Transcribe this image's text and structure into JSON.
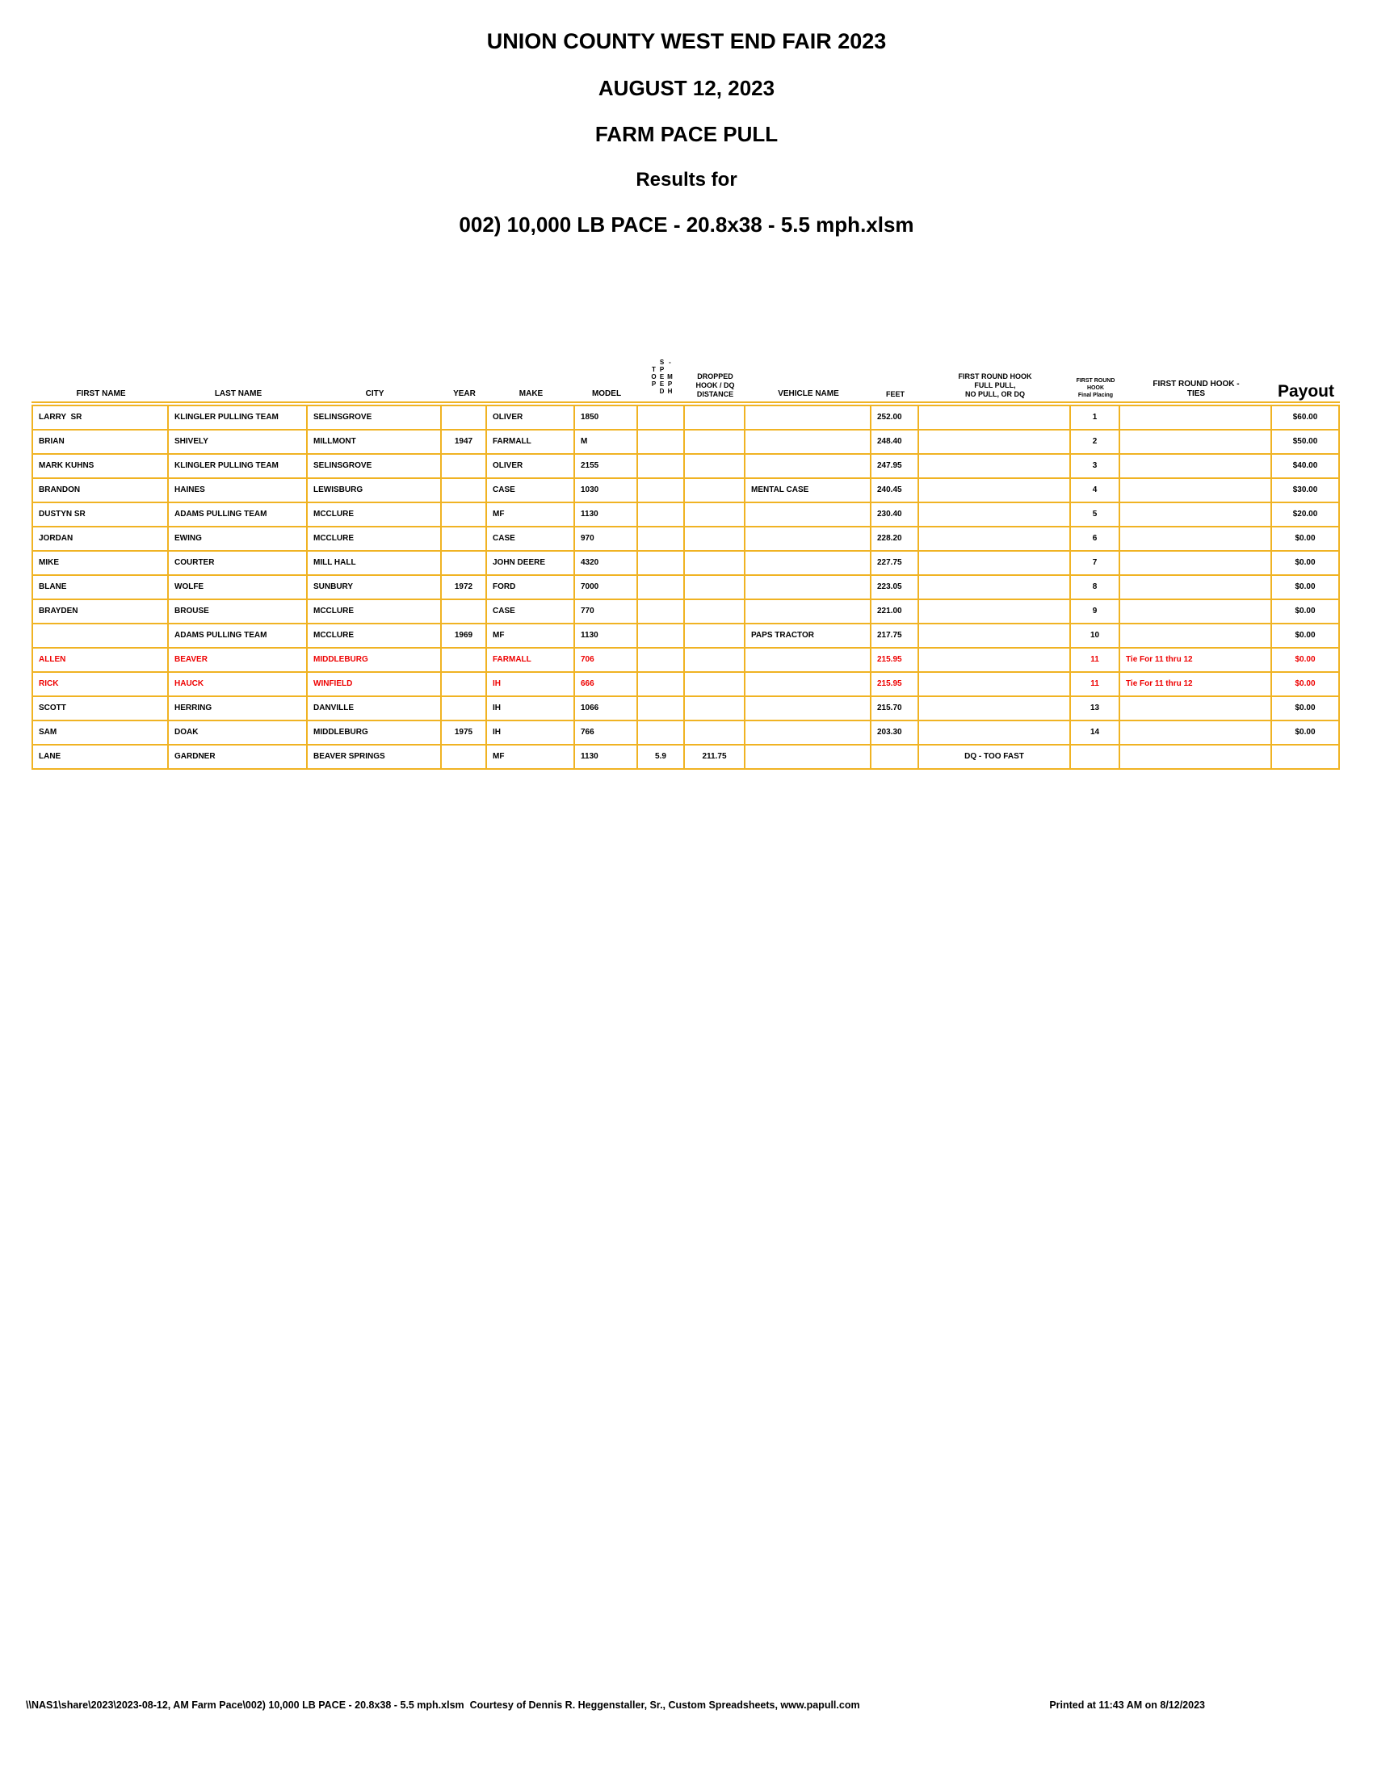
{
  "title": {
    "line1": "UNION COUNTY WEST END FAIR 2023",
    "line2": "AUGUST 12, 2023",
    "line3": "FARM PACE PULL",
    "line4": "Results for",
    "line5": "002) 10,000 LB PACE - 20.8x38 - 5.5 mph.xlsm"
  },
  "colors": {
    "table_border_gold": "#F0B323",
    "tie_row_red": "#EE0000",
    "text_black": "#000000"
  },
  "table": {
    "headers": {
      "first_name": "FIRST NAME",
      "last_name": "LAST NAME",
      "city": "CITY",
      "year": "YEAR",
      "make": "MAKE",
      "model": "MODEL",
      "top_speed": "TOP SPEED - MPH",
      "dropped_l1": "DROPPED",
      "dropped_l2": "HOOK / DQ",
      "dropped_l3": "DISTANCE",
      "vehicle": "VEHICLE NAME",
      "feet": "FEET",
      "full_pull_l1": "FIRST ROUND HOOK",
      "full_pull_l2": "FULL PULL,",
      "full_pull_l3": "NO PULL, OR DQ",
      "placing_l1": "FIRST ROUND",
      "placing_l2": "HOOK",
      "placing_l3": "Final Placing",
      "ties_l1": "FIRST ROUND HOOK -",
      "ties_l2": "TIES",
      "payout": "Payout"
    },
    "rows": [
      {
        "first": "LARRY  SR",
        "last": "KLINGLER PULLING TEAM",
        "city": "SELINSGROVE",
        "year": "",
        "make": "OLIVER",
        "model": "1850",
        "speed": "",
        "dropped": "",
        "vehicle": "",
        "feet": "252.00",
        "full_pull": "",
        "placing": "1",
        "ties": "",
        "payout": "$60.00",
        "red": false
      },
      {
        "first": "BRIAN",
        "last": "SHIVELY",
        "city": "MILLMONT",
        "year": "1947",
        "make": "FARMALL",
        "model": "M",
        "speed": "",
        "dropped": "",
        "vehicle": "",
        "feet": "248.40",
        "full_pull": "",
        "placing": "2",
        "ties": "",
        "payout": "$50.00",
        "red": false
      },
      {
        "first": "MARK KUHNS",
        "last": "KLINGLER PULLING TEAM",
        "city": "SELINSGROVE",
        "year": "",
        "make": "OLIVER",
        "model": "2155",
        "speed": "",
        "dropped": "",
        "vehicle": "",
        "feet": "247.95",
        "full_pull": "",
        "placing": "3",
        "ties": "",
        "payout": "$40.00",
        "red": false
      },
      {
        "first": "BRANDON",
        "last": "HAINES",
        "city": "LEWISBURG",
        "year": "",
        "make": "CASE",
        "model": "1030",
        "speed": "",
        "dropped": "",
        "vehicle": "MENTAL CASE",
        "feet": "240.45",
        "full_pull": "",
        "placing": "4",
        "ties": "",
        "payout": "$30.00",
        "red": false
      },
      {
        "first": "DUSTYN SR",
        "last": "ADAMS PULLING TEAM",
        "city": "MCCLURE",
        "year": "",
        "make": "MF",
        "model": "1130",
        "speed": "",
        "dropped": "",
        "vehicle": "",
        "feet": "230.40",
        "full_pull": "",
        "placing": "5",
        "ties": "",
        "payout": "$20.00",
        "red": false
      },
      {
        "first": "JORDAN",
        "last": "EWING",
        "city": "MCCLURE",
        "year": "",
        "make": "CASE",
        "model": "970",
        "speed": "",
        "dropped": "",
        "vehicle": "",
        "feet": "228.20",
        "full_pull": "",
        "placing": "6",
        "ties": "",
        "payout": "$0.00",
        "red": false
      },
      {
        "first": "MIKE",
        "last": "COURTER",
        "city": "MILL HALL",
        "year": "",
        "make": "JOHN DEERE",
        "model": "4320",
        "speed": "",
        "dropped": "",
        "vehicle": "",
        "feet": "227.75",
        "full_pull": "",
        "placing": "7",
        "ties": "",
        "payout": "$0.00",
        "red": false
      },
      {
        "first": "BLANE",
        "last": "WOLFE",
        "city": "SUNBURY",
        "year": "1972",
        "make": "FORD",
        "model": "7000",
        "speed": "",
        "dropped": "",
        "vehicle": "",
        "feet": "223.05",
        "full_pull": "",
        "placing": "8",
        "ties": "",
        "payout": "$0.00",
        "red": false
      },
      {
        "first": "BRAYDEN",
        "last": "BROUSE",
        "city": "MCCLURE",
        "year": "",
        "make": "CASE",
        "model": "770",
        "speed": "",
        "dropped": "",
        "vehicle": "",
        "feet": "221.00",
        "full_pull": "",
        "placing": "9",
        "ties": "",
        "payout": "$0.00",
        "red": false
      },
      {
        "first": "",
        "last": "ADAMS PULLING TEAM",
        "city": "MCCLURE",
        "year": "1969",
        "make": "MF",
        "model": "1130",
        "speed": "",
        "dropped": "",
        "vehicle": "PAPS TRACTOR",
        "feet": "217.75",
        "full_pull": "",
        "placing": "10",
        "ties": "",
        "payout": "$0.00",
        "red": false
      },
      {
        "first": "ALLEN",
        "last": "BEAVER",
        "city": "MIDDLEBURG",
        "year": "",
        "make": "FARMALL",
        "model": "706",
        "speed": "",
        "dropped": "",
        "vehicle": "",
        "feet": "215.95",
        "full_pull": "",
        "placing": "11",
        "ties": "Tie For 11 thru 12",
        "payout": "$0.00",
        "red": true
      },
      {
        "first": "RICK",
        "last": "HAUCK",
        "city": "WINFIELD",
        "year": "",
        "make": "IH",
        "model": "666",
        "speed": "",
        "dropped": "",
        "vehicle": "",
        "feet": "215.95",
        "full_pull": "",
        "placing": "11",
        "ties": "Tie For 11 thru 12",
        "payout": "$0.00",
        "red": true
      },
      {
        "first": "SCOTT",
        "last": "HERRING",
        "city": "DANVILLE",
        "year": "",
        "make": "IH",
        "model": "1066",
        "speed": "",
        "dropped": "",
        "vehicle": "",
        "feet": "215.70",
        "full_pull": "",
        "placing": "13",
        "ties": "",
        "payout": "$0.00",
        "red": false
      },
      {
        "first": "SAM",
        "last": "DOAK",
        "city": "MIDDLEBURG",
        "year": "1975",
        "make": "IH",
        "model": "766",
        "speed": "",
        "dropped": "",
        "vehicle": "",
        "feet": "203.30",
        "full_pull": "",
        "placing": "14",
        "ties": "",
        "payout": "$0.00",
        "red": false
      },
      {
        "first": "LANE",
        "last": "GARDNER",
        "city": "BEAVER SPRINGS",
        "year": "",
        "make": "MF",
        "model": "1130",
        "speed": "5.9",
        "dropped": "211.75",
        "vehicle": "",
        "feet": "",
        "full_pull": "DQ - TOO FAST",
        "placing": "",
        "ties": "",
        "payout": "",
        "red": false
      }
    ]
  },
  "footer": {
    "left": "\\\\NAS1\\share\\2023\\2023-08-12, AM Farm Pace\\002) 10,000 LB PACE - 20.8x38 - 5.5 mph.xlsm  Courtesy of Dennis R. Heggenstaller, Sr., Custom Spreadsheets, www.papull.com",
    "right": "Printed at 11:43 AM on 8/12/2023"
  }
}
